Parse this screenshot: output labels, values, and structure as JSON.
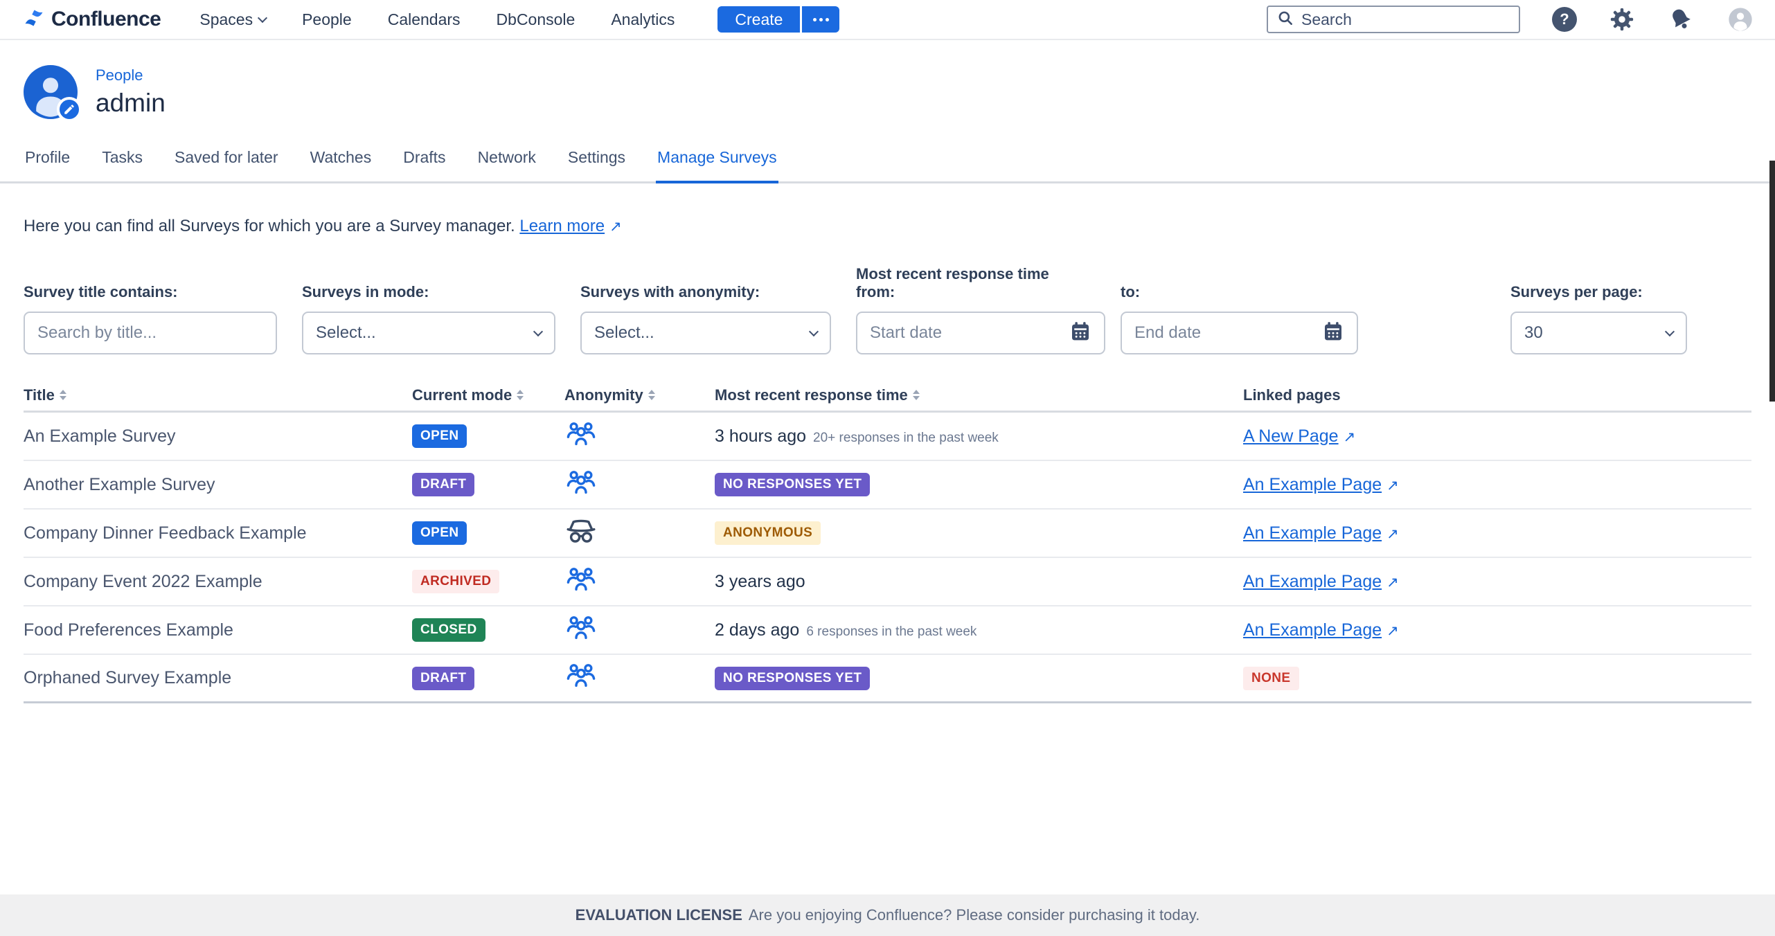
{
  "nav": {
    "brand": "Confluence",
    "items": [
      {
        "label": "Spaces"
      },
      {
        "label": "People"
      },
      {
        "label": "Calendars"
      },
      {
        "label": "DbConsole"
      },
      {
        "label": "Analytics"
      }
    ],
    "create_label": "Create",
    "search_placeholder": "Search"
  },
  "profile": {
    "breadcrumb": "People",
    "username": "admin"
  },
  "tabs": [
    {
      "label": "Profile",
      "active": false
    },
    {
      "label": "Tasks",
      "active": false
    },
    {
      "label": "Saved for later",
      "active": false
    },
    {
      "label": "Watches",
      "active": false
    },
    {
      "label": "Drafts",
      "active": false
    },
    {
      "label": "Network",
      "active": false
    },
    {
      "label": "Settings",
      "active": false
    },
    {
      "label": "Manage Surveys",
      "active": true
    }
  ],
  "intro": {
    "text": "Here you can find all Surveys for which you are a Survey manager.",
    "link_label": "Learn more"
  },
  "filters": {
    "title": {
      "label": "Survey title contains:",
      "placeholder": "Search by title..."
    },
    "mode": {
      "label": "Surveys in mode:",
      "value": "Select..."
    },
    "anonymity": {
      "label": "Surveys with anonymity:",
      "value": "Select..."
    },
    "response_time": {
      "heading": "Most recent response time",
      "from_label": "from:",
      "from_placeholder": "Start date",
      "to_label": "to:",
      "to_placeholder": "End date"
    },
    "per_page": {
      "label": "Surveys per page:",
      "value": "30"
    }
  },
  "table": {
    "columns": [
      {
        "label": "Title",
        "sortable": true
      },
      {
        "label": "Current mode",
        "sortable": true
      },
      {
        "label": "Anonymity",
        "sortable": true
      },
      {
        "label": "Most recent response time",
        "sortable": true
      },
      {
        "label": "Linked pages",
        "sortable": false
      }
    ],
    "rows": [
      {
        "title": "An Example Survey",
        "mode": "OPEN",
        "mode_class": "open",
        "anonymity_icon": "group-icon",
        "response": {
          "time": "3 hours ago",
          "note": "20+ responses in the past week"
        },
        "linked": {
          "label": "A New Page",
          "external": true
        }
      },
      {
        "title": "Another Example Survey",
        "mode": "DRAFT",
        "mode_class": "draft",
        "anonymity_icon": "group-icon",
        "response": {
          "badge": "NO RESPONSES YET",
          "badge_class": "purple"
        },
        "linked": {
          "label": "An Example Page",
          "external": true
        }
      },
      {
        "title": "Company Dinner Feedback Example",
        "mode": "OPEN",
        "mode_class": "open",
        "anonymity_icon": "incognito-icon",
        "response": {
          "badge": "ANONYMOUS",
          "badge_class": "amber"
        },
        "linked": {
          "label": "An Example Page",
          "external": true
        }
      },
      {
        "title": "Company Event 2022 Example",
        "mode": "ARCHIVED",
        "mode_class": "archived",
        "anonymity_icon": "group-icon",
        "response": {
          "time": "3 years ago"
        },
        "linked": {
          "label": "An Example Page",
          "external": true
        }
      },
      {
        "title": "Food Preferences Example",
        "mode": "CLOSED",
        "mode_class": "closed",
        "anonymity_icon": "group-icon",
        "response": {
          "time": "2 days ago",
          "note": "6 responses in the past week"
        },
        "linked": {
          "label": "An Example Page",
          "external": true
        }
      },
      {
        "title": "Orphaned Survey Example",
        "mode": "DRAFT",
        "mode_class": "draft",
        "anonymity_icon": "group-icon",
        "response": {
          "badge": "NO RESPONSES YET",
          "badge_class": "purple"
        },
        "linked": {
          "none": "NONE"
        }
      }
    ]
  },
  "footer": {
    "license": "EVALUATION LICENSE",
    "message": "Are you enjoying Confluence? Please consider purchasing it today."
  },
  "colors": {
    "accent_blue": "#1b6ae0",
    "link_blue": "#1766d8",
    "purple": "#6a5ac8",
    "green": "#1f8456",
    "red_text": "#c9372c",
    "red_bg": "#fdecec",
    "amber_bg": "#fdf0cf",
    "amber_text": "#9e5b05"
  }
}
